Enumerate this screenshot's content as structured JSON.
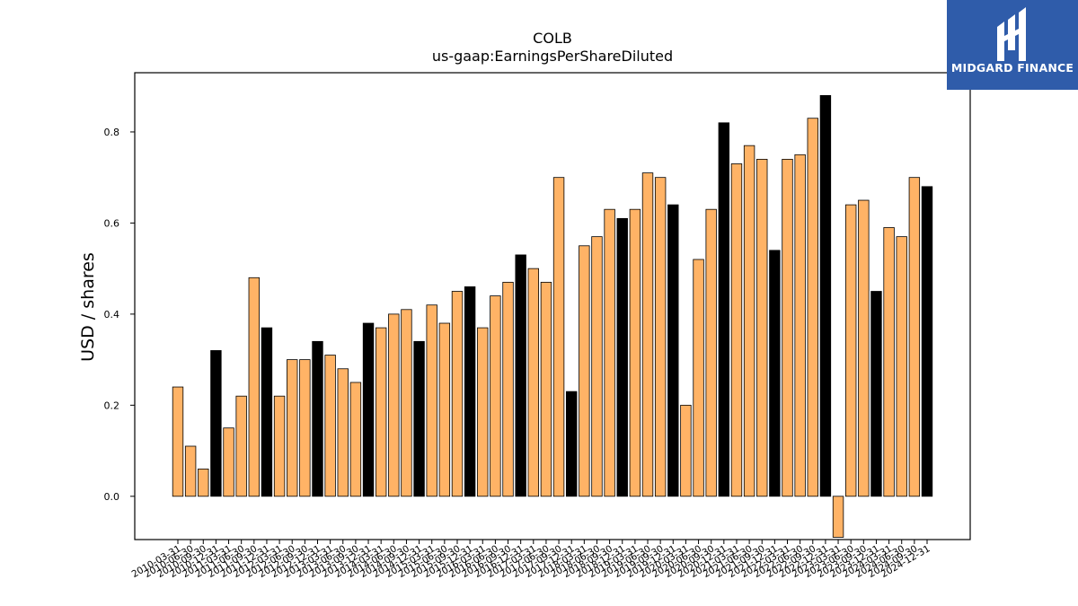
{
  "chart_data": {
    "type": "bar",
    "title": "COLB",
    "subtitle": "us-gaap:EarningsPerShareDiluted",
    "ylabel": "USD / shares",
    "xlabel": "",
    "ylim": [
      -0.095,
      0.93
    ],
    "yticks": [
      0.0,
      0.2,
      0.4,
      0.6,
      0.8
    ],
    "grid": false,
    "colors": {
      "quarter": "#ffb366",
      "year_end": "#000000",
      "edge": "#000000"
    },
    "categories": [
      "2010-03-31",
      "2010-06-30",
      "2010-09-30",
      "2010-12-31",
      "2011-03-31",
      "2011-06-30",
      "2011-09-30",
      "2011-12-31",
      "2012-03-31",
      "2012-06-30",
      "2012-09-30",
      "2012-12-31",
      "2013-03-31",
      "2013-06-30",
      "2013-09-30",
      "2013-12-31",
      "2014-03-31",
      "2014-06-30",
      "2014-09-30",
      "2014-12-31",
      "2015-03-31",
      "2015-06-30",
      "2015-09-30",
      "2015-12-31",
      "2016-03-31",
      "2016-06-30",
      "2016-09-30",
      "2016-12-31",
      "2017-03-31",
      "2017-06-30",
      "2017-09-30",
      "2017-12-31",
      "2018-03-31",
      "2018-06-30",
      "2018-09-30",
      "2018-12-31",
      "2019-03-31",
      "2019-06-30",
      "2019-09-30",
      "2019-12-31",
      "2020-03-31",
      "2020-06-30",
      "2020-09-30",
      "2020-12-31",
      "2021-03-31",
      "2021-06-30",
      "2021-09-30",
      "2021-12-31",
      "2022-03-31",
      "2022-06-30",
      "2022-09-30",
      "2022-12-31",
      "2023-03-31",
      "2023-06-30",
      "2023-09-30",
      "2023-12-31",
      "2024-03-31",
      "2024-06-30",
      "2024-09-30",
      "2024-12-31"
    ],
    "values": [
      0.24,
      0.11,
      0.06,
      0.32,
      0.15,
      0.22,
      0.48,
      0.37,
      0.22,
      0.3,
      0.3,
      0.34,
      0.31,
      0.28,
      0.25,
      0.38,
      0.37,
      0.4,
      0.41,
      0.34,
      0.42,
      0.38,
      0.45,
      0.46,
      0.37,
      0.44,
      0.47,
      0.53,
      0.5,
      0.47,
      0.7,
      0.23,
      0.55,
      0.57,
      0.63,
      0.61,
      0.63,
      0.71,
      0.7,
      0.64,
      0.2,
      0.52,
      0.63,
      0.82,
      0.73,
      0.77,
      0.74,
      0.54,
      0.74,
      0.75,
      0.83,
      0.88,
      -0.09,
      0.64,
      0.65,
      0.45,
      0.59,
      0.57,
      0.7,
      0.68
    ],
    "year_end": [
      false,
      false,
      false,
      true,
      false,
      false,
      false,
      true,
      false,
      false,
      false,
      true,
      false,
      false,
      false,
      true,
      false,
      false,
      false,
      true,
      false,
      false,
      false,
      true,
      false,
      false,
      false,
      true,
      false,
      false,
      false,
      true,
      false,
      false,
      false,
      true,
      false,
      false,
      false,
      true,
      false,
      false,
      false,
      true,
      false,
      false,
      false,
      true,
      false,
      false,
      false,
      true,
      false,
      false,
      false,
      true,
      false,
      false,
      false,
      true
    ]
  },
  "logo": {
    "text": "MIDGARD FINANCE"
  }
}
